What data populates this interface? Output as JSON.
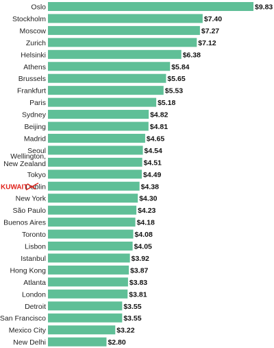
{
  "chart_data": {
    "type": "bar",
    "orientation": "horizontal",
    "categories": [
      "Oslo",
      "Stockholm",
      "Moscow",
      "Zurich",
      "Helsinki",
      "Athens",
      "Brussels",
      "Frankfurt",
      "Paris",
      "Sydney",
      "Beijing",
      "Madrid",
      "Seoul",
      "Wellington, New Zealand",
      "Tokyo",
      "Dublin",
      "New York",
      "São Paulo",
      "Buenos Aires",
      "Toronto",
      "Lisbon",
      "Istanbul",
      "Hong Kong",
      "Atlanta",
      "London",
      "Detroit",
      "San Francisco",
      "Mexico City",
      "New Delhi"
    ],
    "values": [
      9.83,
      7.4,
      7.27,
      7.12,
      6.38,
      5.84,
      5.65,
      5.53,
      5.18,
      4.82,
      4.81,
      4.65,
      4.54,
      4.51,
      4.49,
      4.38,
      4.3,
      4.23,
      4.18,
      4.08,
      4.05,
      3.92,
      3.87,
      3.83,
      3.81,
      3.55,
      3.55,
      3.22,
      2.8
    ],
    "value_labels": [
      "$9.83",
      "$7.40",
      "$7.27",
      "$7.12",
      "$6.38",
      "$5.84",
      "$5.65",
      "$5.53",
      "$5.18",
      "$4.82",
      "$4.81",
      "$4.65",
      "$4.54",
      "$4.51",
      "$4.49",
      "$4.38",
      "$4.30",
      "$4.23",
      "$4.18",
      "$4.08",
      "$4.05",
      "$3.92",
      "$3.87",
      "$3.83",
      "$3.81",
      "$3.55",
      "$3.55",
      "$3.22",
      "$2.80"
    ],
    "title": "",
    "xlabel": "",
    "ylabel": "",
    "xlim": [
      0,
      9.83
    ],
    "grid": false,
    "bar_color": "#5fbf97",
    "annotation": {
      "text": "KUWAIT",
      "target_category": "Dublin",
      "color": "#e0211a",
      "note": "handwritten red label with strike-through over Dublin"
    }
  }
}
